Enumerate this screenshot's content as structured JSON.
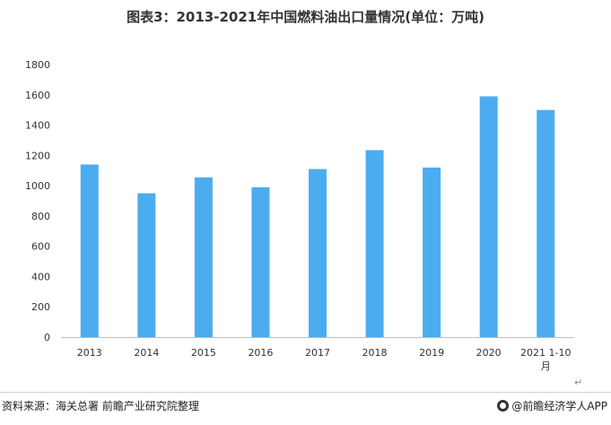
{
  "title": "图表3：2013-2021年中国燃料油出口量情况(单位：万吨)",
  "source": "资料来源：海关总署 前瞻产业研究院整理",
  "brand": "@前瞻经济学人APP",
  "return_mark": "↵",
  "colors": {
    "bar": "#4badf0",
    "axis": "#bfbfbf",
    "text": "#333333"
  },
  "chart_data": {
    "type": "bar",
    "title": "图表3：2013-2021年中国燃料油出口量情况(单位：万吨)",
    "xlabel": "",
    "ylabel": "",
    "categories": [
      "2013",
      "2014",
      "2015",
      "2016",
      "2017",
      "2018",
      "2019",
      "2020",
      "2021 1-10月"
    ],
    "category_lines": [
      [
        "2013"
      ],
      [
        "2014"
      ],
      [
        "2015"
      ],
      [
        "2016"
      ],
      [
        "2017"
      ],
      [
        "2018"
      ],
      [
        "2019"
      ],
      [
        "2020"
      ],
      [
        "2021 1-10",
        "月"
      ]
    ],
    "values": [
      1140,
      950,
      1055,
      990,
      1110,
      1235,
      1120,
      1590,
      1500
    ],
    "ylim": [
      0,
      1800
    ],
    "yticks": [
      0,
      200,
      400,
      600,
      800,
      1000,
      1200,
      1400,
      1600,
      1800
    ],
    "grid": false,
    "legend": "none"
  }
}
